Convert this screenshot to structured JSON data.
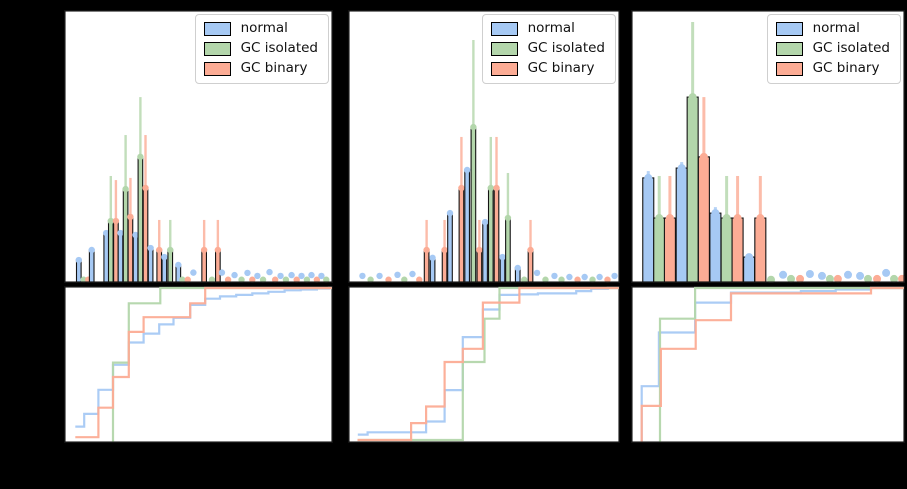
{
  "figure": {
    "background": "#000000",
    "panel_background": "#ffffff",
    "spine_color": "#141414",
    "tick_labels_visible": false
  },
  "legend": {
    "items": [
      {
        "label": "normal",
        "color": "#a6c9f4"
      },
      {
        "label": "GC isolated",
        "color": "#b3d6ab"
      },
      {
        "label": "GC binary",
        "color": "#fcac95"
      }
    ]
  },
  "chart_data": {
    "type": "bar",
    "description": "Three subplot columns; top: stem histograms with top markers and upward error bars; bottom: ECDF step curves. No axis tick labels are visible (rendered black on black).",
    "series_names": [
      "normal",
      "GC isolated",
      "GC binary"
    ],
    "stem_format": "[x_fraction_of_axis_width, series_index, height_fraction_of_axis_height, optional_errorbar_top_fraction]",
    "ecdf_format": "points are [x_fraction_of_axis_width, cumulative_fraction_0_to_1]",
    "panels": [
      {
        "histogram": {
          "stems": [
            [
              0.055,
              0,
              0.084
            ],
            [
              0.073,
              1,
              0.012
            ],
            [
              0.09,
              2,
              0.012
            ],
            [
              0.103,
              0,
              0.121
            ],
            [
              0.157,
              0,
              0.183
            ],
            [
              0.174,
              1,
              0.227,
              0.392
            ],
            [
              0.193,
              2,
              0.227,
              0.377
            ],
            [
              0.21,
              0,
              0.183
            ],
            [
              0.229,
              1,
              0.344,
              0.542
            ],
            [
              0.247,
              2,
              0.242,
              0.385
            ],
            [
              0.266,
              0,
              0.176
            ],
            [
              0.284,
              1,
              0.462,
              0.681
            ],
            [
              0.303,
              2,
              0.348,
              0.542
            ],
            [
              0.322,
              0,
              0.128
            ],
            [
              0.354,
              2,
              0.121,
              0.231
            ],
            [
              0.373,
              0,
              0.095
            ],
            [
              0.395,
              1,
              0.121,
              0.231
            ],
            [
              0.425,
              0,
              0.066
            ],
            [
              0.44,
              1,
              0.012
            ],
            [
              0.46,
              2,
              0.012
            ],
            [
              0.481,
              0,
              0.038
            ],
            [
              0.521,
              2,
              0.121,
              0.231
            ],
            [
              0.55,
              1,
              0.012
            ],
            [
              0.572,
              2,
              0.121,
              0.231
            ],
            [
              0.587,
              0,
              0.038
            ],
            [
              0.61,
              2,
              0.012
            ],
            [
              0.634,
              0,
              0.029
            ],
            [
              0.66,
              1,
              0.012
            ],
            [
              0.682,
              0,
              0.037
            ],
            [
              0.7,
              2,
              0.012
            ],
            [
              0.719,
              0,
              0.026
            ],
            [
              0.74,
              1,
              0.012
            ],
            [
              0.764,
              0,
              0.04
            ],
            [
              0.785,
              2,
              0.012
            ],
            [
              0.805,
              0,
              0.026
            ],
            [
              0.825,
              1,
              0.012
            ],
            [
              0.846,
              0,
              0.029
            ],
            [
              0.865,
              2,
              0.012
            ],
            [
              0.883,
              0,
              0.026
            ],
            [
              0.903,
              1,
              0.012
            ],
            [
              0.92,
              0,
              0.029
            ],
            [
              0.94,
              2,
              0.012
            ],
            [
              0.957,
              0,
              0.026
            ],
            [
              0.975,
              1,
              0.012
            ]
          ]
        },
        "ecdf": {
          "series": [
            {
              "s": 0,
              "name": "normal",
              "points": [
                [
                  0.042,
                  0.097
                ],
                [
                  0.075,
                  0.18
                ],
                [
                  0.128,
                  0.337
                ],
                [
                  0.182,
                  0.5
                ],
                [
                  0.241,
                  0.645
                ],
                [
                  0.296,
                  0.703
                ],
                [
                  0.354,
                  0.763
                ],
                [
                  0.407,
                  0.806
                ],
                [
                  0.469,
                  0.89
                ],
                [
                  0.525,
                  0.93
                ],
                [
                  0.58,
                  0.945
                ],
                [
                  0.64,
                  0.955
                ],
                [
                  0.7,
                  0.965
                ],
                [
                  0.76,
                  0.975
                ],
                [
                  0.82,
                  0.985
                ],
                [
                  0.88,
                  0.99
                ],
                [
                  0.94,
                  0.997
                ],
                [
                  0.985,
                  1.0
                ]
              ]
            },
            {
              "s": 1,
              "name": "GC isolated",
              "points": [
                [
                  0.182,
                  0.0
                ],
                [
                  0.182,
                  0.514
                ],
                [
                  0.241,
                  0.9
                ],
                [
                  0.358,
                  1.0
                ]
              ]
            },
            {
              "s": 2,
              "name": "GC binary",
              "points": [
                [
                  0.042,
                  0.028
                ],
                [
                  0.128,
                  0.22
                ],
                [
                  0.182,
                  0.42
                ],
                [
                  0.241,
                  0.714
                ],
                [
                  0.296,
                  0.81
                ],
                [
                  0.469,
                  0.9
                ],
                [
                  0.525,
                  1.0
                ]
              ]
            }
          ]
        }
      },
      {
        "histogram": {
          "stems": [
            [
              0.053,
              0,
              0.026
            ],
            [
              0.083,
              1,
              0.012
            ],
            [
              0.116,
              0,
              0.026
            ],
            [
              0.149,
              2,
              0.012
            ],
            [
              0.182,
              0,
              0.03
            ],
            [
              0.207,
              1,
              0.012
            ],
            [
              0.237,
              0,
              0.033
            ],
            [
              0.262,
              2,
              0.012
            ],
            [
              0.289,
              2,
              0.121,
              0.231
            ],
            [
              0.311,
              0,
              0.092
            ],
            [
              0.355,
              2,
              0.121,
              0.231
            ],
            [
              0.375,
              0,
              0.256
            ],
            [
              0.417,
              2,
              0.348,
              0.535
            ],
            [
              0.438,
              0,
              0.414
            ],
            [
              0.461,
              1,
              0.571,
              0.89
            ],
            [
              0.483,
              2,
              0.121,
              0.231
            ],
            [
              0.504,
              0,
              0.223
            ],
            [
              0.525,
              1,
              0.348,
              0.535
            ],
            [
              0.546,
              2,
              0.348,
              0.535
            ],
            [
              0.568,
              0,
              0.095
            ],
            [
              0.588,
              1,
              0.238,
              0.403
            ],
            [
              0.624,
              0,
              0.055
            ],
            [
              0.648,
              1,
              0.012
            ],
            [
              0.671,
              2,
              0.121,
              0.231
            ],
            [
              0.695,
              0,
              0.037
            ],
            [
              0.726,
              1,
              0.012
            ],
            [
              0.759,
              0,
              0.026
            ],
            [
              0.785,
              1,
              0.012
            ],
            [
              0.814,
              0,
              0.022
            ],
            [
              0.844,
              2,
              0.012
            ],
            [
              0.87,
              0,
              0.022
            ],
            [
              0.899,
              1,
              0.012
            ],
            [
              0.925,
              0,
              0.022
            ],
            [
              0.954,
              2,
              0.012
            ],
            [
              0.98,
              0,
              0.026
            ]
          ]
        },
        "ecdf": {
          "series": [
            {
              "s": 0,
              "name": "normal",
              "points": [
                [
                  0.036,
                  0.045
                ],
                [
                  0.072,
                  0.06
                ],
                [
                  0.287,
                  0.13
                ],
                [
                  0.355,
                  0.335
                ],
                [
                  0.422,
                  0.68
                ],
                [
                  0.496,
                  0.86
                ],
                [
                  0.557,
                  0.955
                ],
                [
                  0.63,
                  0.958
                ],
                [
                  0.698,
                  0.965
                ],
                [
                  0.839,
                  0.98
                ],
                [
                  0.894,
                  0.995
                ],
                [
                  0.955,
                  1.0
                ]
              ]
            },
            {
              "s": 1,
              "name": "GC isolated",
              "points": [
                [
                  0.035,
                  0.01
                ],
                [
                  0.422,
                  0.518
                ],
                [
                  0.502,
                  0.8
                ],
                [
                  0.557,
                  1.0
                ]
              ]
            },
            {
              "s": 2,
              "name": "GC binary",
              "points": [
                [
                  0.035,
                  0.01
                ],
                [
                  0.232,
                  0.12
                ],
                [
                  0.287,
                  0.228
                ],
                [
                  0.355,
                  0.518
                ],
                [
                  0.422,
                  0.604
                ],
                [
                  0.496,
                  0.905
                ],
                [
                  0.63,
                  1.0
                ]
              ]
            }
          ]
        }
      },
      {
        "histogram": {
          "wide_bars": true,
          "stems": [
            [
              0.063,
              0,
              0.385,
              0.41
            ],
            [
              0.103,
              1,
              0.238,
              0.392
            ],
            [
              0.142,
              2,
              0.238,
              0.392
            ],
            [
              0.185,
              0,
              0.421,
              0.443
            ],
            [
              0.225,
              1,
              0.681,
              0.956
            ],
            [
              0.266,
              2,
              0.462,
              0.681
            ],
            [
              0.308,
              0,
              0.256,
              0.278
            ],
            [
              0.349,
              1,
              0.238,
              0.392
            ],
            [
              0.389,
              2,
              0.238,
              0.392
            ],
            [
              0.431,
              0,
              0.095
            ],
            [
              0.472,
              2,
              0.238,
              0.392
            ],
            [
              0.511,
              1,
              0.012
            ],
            [
              0.555,
              0,
              0.03
            ],
            [
              0.584,
              1,
              0.015
            ],
            [
              0.617,
              2,
              0.015
            ],
            [
              0.653,
              0,
              0.033
            ],
            [
              0.697,
              0,
              0.026
            ],
            [
              0.726,
              1,
              0.015
            ],
            [
              0.755,
              2,
              0.015
            ],
            [
              0.792,
              0,
              0.03
            ],
            [
              0.836,
              0,
              0.026
            ],
            [
              0.865,
              1,
              0.015
            ],
            [
              0.898,
              2,
              0.015
            ],
            [
              0.931,
              0,
              0.037
            ],
            [
              0.96,
              1,
              0.015
            ],
            [
              0.989,
              2,
              0.015
            ]
          ]
        },
        "ecdf": {
          "series": [
            {
              "s": 0,
              "name": "normal",
              "points": [
                [
                  0.039,
                  0.0
                ],
                [
                  0.039,
                  0.36
                ],
                [
                  0.102,
                  0.71
                ],
                [
                  0.234,
                  0.905
                ],
                [
                  0.365,
                  0.97
                ],
                [
                  0.62,
                  0.98
                ],
                [
                  0.747,
                  0.99
                ],
                [
                  0.876,
                  1.0
                ]
              ]
            },
            {
              "s": 1,
              "name": "GC isolated",
              "points": [
                [
                  0.106,
                  0.0
                ],
                [
                  0.106,
                  0.8
                ],
                [
                  0.234,
                  1.0
                ]
              ]
            },
            {
              "s": 2,
              "name": "GC binary",
              "points": [
                [
                  0.039,
                  0.0
                ],
                [
                  0.039,
                  0.232
                ],
                [
                  0.109,
                  0.604
                ],
                [
                  0.236,
                  0.79
                ],
                [
                  0.365,
                  0.965
                ],
                [
                  0.876,
                  1.0
                ]
              ]
            }
          ]
        }
      }
    ]
  }
}
